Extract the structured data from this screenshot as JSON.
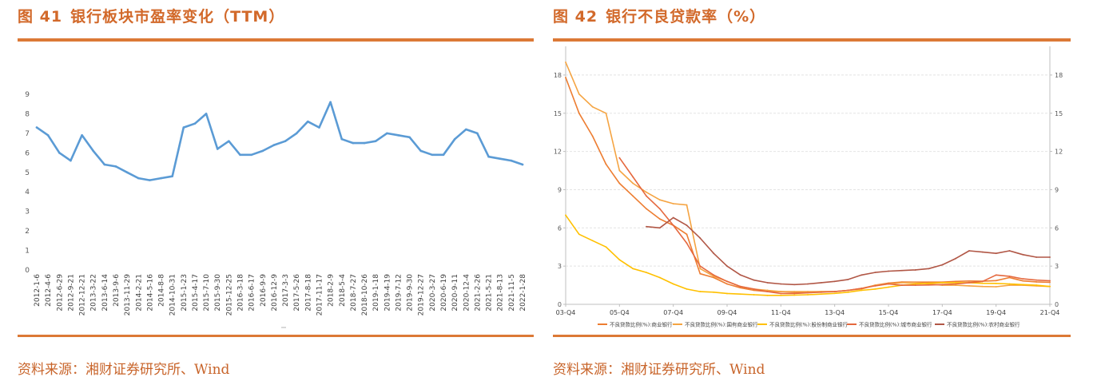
{
  "figures": [
    {
      "title_no": "图 41",
      "title_text": "银行板块市盈率变化（TTM）",
      "source": "资料来源：湘财证券研究所、Wind"
    },
    {
      "title_no": "图 42",
      "title_text": "银行不良贷款率（%）",
      "source": "资料来源：湘财证券研究所、Wind"
    }
  ],
  "chart_data": [
    {
      "type": "line",
      "title": "",
      "xlabel": "",
      "ylabel": "",
      "ylim": [
        0,
        9
      ],
      "yticks": [
        0,
        1,
        2,
        3,
        4,
        5,
        6,
        7,
        8,
        9
      ],
      "grid": false,
      "tick_labels": [
        "2012-1-6",
        "2012-4-6",
        "2012-6-29",
        "2012-9-21",
        "2012-12-21",
        "2013-3-22",
        "2013-6-14",
        "2013-9-6",
        "2013-11-29",
        "2014-2-21",
        "2014-5-16",
        "2014-8-8",
        "2014-10-31",
        "2015-1-23",
        "2015-4-17",
        "2015-7-10",
        "2015-9-30",
        "2015-12-25",
        "2016-3-18",
        "2016-6-17",
        "2016-9-9",
        "2016-12-9",
        "2017-3-3",
        "2017-5-26",
        "2017-8-18",
        "2017-11-17",
        "2018-2-9",
        "2018-5-4",
        "2018-7-27",
        "2018-10-26",
        "2019-1-18",
        "2019-4-19",
        "2019-7-12",
        "2019-9-30",
        "2019-12-27",
        "2020-3-27",
        "2020-6-19",
        "2020-9-11",
        "2020-12-4",
        "2021-2-26",
        "2021-5-21",
        "2021-8-13",
        "2021-11-5",
        "2022-1-28"
      ],
      "series": [
        {
          "color": "#5b9bd5",
          "x": [
            "2012-1-6",
            "2012-4-6",
            "2012-6-29",
            "2012-9-21",
            "2012-12-21",
            "2013-3-22",
            "2013-6-14",
            "2013-9-6",
            "2013-11-29",
            "2014-2-21",
            "2014-5-16",
            "2014-8-8",
            "2014-10-31",
            "2015-1-23",
            "2015-4-17",
            "2015-7-10",
            "2015-9-30",
            "2015-12-25",
            "2016-3-18",
            "2016-6-17",
            "2016-9-9",
            "2016-12-9",
            "2017-3-3",
            "2017-5-26",
            "2017-8-18",
            "2017-11-17",
            "2018-2-9",
            "2018-5-4",
            "2018-7-27",
            "2018-10-26",
            "2019-1-18",
            "2019-4-19",
            "2019-7-12",
            "2019-9-30",
            "2019-12-27",
            "2020-3-27",
            "2020-6-19",
            "2020-9-11",
            "2020-12-4",
            "2021-2-26",
            "2021-5-21",
            "2021-8-13",
            "2021-11-5",
            "2022-1-28"
          ],
          "values": [
            7.3,
            6.9,
            6.0,
            5.6,
            6.9,
            6.1,
            5.4,
            5.3,
            5.0,
            4.7,
            4.6,
            4.7,
            4.8,
            7.3,
            7.5,
            8.0,
            6.2,
            6.6,
            5.9,
            5.9,
            6.1,
            6.4,
            6.6,
            7.0,
            7.6,
            7.3,
            8.6,
            6.7,
            6.5,
            6.5,
            6.6,
            7.0,
            6.9,
            6.8,
            6.1,
            5.9,
            5.9,
            6.7,
            7.2,
            7.0,
            5.8,
            5.7,
            5.6,
            5.4
          ]
        }
      ]
    },
    {
      "type": "line",
      "title": "",
      "xlabel": "",
      "ylabel": "",
      "ylim": [
        0,
        19.5
      ],
      "yticks": [
        0,
        3,
        6,
        9,
        12,
        15,
        18
      ],
      "grid": true,
      "legend_position": "bottom",
      "x": [
        "03-Q4",
        "04-Q2",
        "04-Q4",
        "05-Q2",
        "05-Q4",
        "06-Q2",
        "06-Q4",
        "07-Q2",
        "07-Q4",
        "08-Q2",
        "08-Q4",
        "09-Q2",
        "09-Q4",
        "10-Q2",
        "10-Q4",
        "11-Q2",
        "11-Q4",
        "12-Q2",
        "12-Q4",
        "13-Q2",
        "13-Q4",
        "14-Q2",
        "14-Q4",
        "15-Q2",
        "15-Q4",
        "16-Q2",
        "16-Q4",
        "17-Q2",
        "17-Q4",
        "18-Q2",
        "18-Q4",
        "19-Q2",
        "19-Q4",
        "20-Q2",
        "20-Q4",
        "21-Q2",
        "21-Q4"
      ],
      "tick_labels": [
        "03-Q4",
        "05-Q4",
        "07-Q4",
        "09-Q4",
        "11-Q4",
        "13-Q4",
        "15-Q4",
        "17-Q4",
        "19-Q4",
        "21-Q4"
      ],
      "series": [
        {
          "name": "不良贷款比例(%):商业银行",
          "color": "#ed7d31",
          "values": [
            17.8,
            15.0,
            13.2,
            11.0,
            9.5,
            8.5,
            7.5,
            6.7,
            6.2,
            5.5,
            2.4,
            2.1,
            1.6,
            1.3,
            1.1,
            1.0,
            1.0,
            0.95,
            0.95,
            1.0,
            1.0,
            1.1,
            1.25,
            1.5,
            1.67,
            1.75,
            1.74,
            1.74,
            1.74,
            1.8,
            1.83,
            1.81,
            1.86,
            2.1,
            1.84,
            1.76,
            1.73
          ]
        },
        {
          "name": "不良贷款比例(%):国有商业银行",
          "color": "#f5a442",
          "values": [
            19.0,
            16.5,
            15.5,
            15.0,
            10.5,
            9.5,
            8.8,
            8.2,
            7.9,
            7.8,
            2.8,
            2.2,
            1.8,
            1.4,
            1.2,
            1.1,
            1.0,
            1.0,
            1.0,
            1.0,
            1.0,
            1.1,
            1.2,
            1.5,
            1.6,
            1.7,
            1.7,
            1.6,
            1.5,
            1.5,
            1.45,
            1.4,
            1.38,
            1.5,
            1.5,
            1.45,
            1.4
          ]
        },
        {
          "name": "不良贷款比例(%):股份制商业银行",
          "color": "#ffc000",
          "values": [
            7.0,
            5.5,
            5.0,
            4.5,
            3.5,
            2.8,
            2.5,
            2.1,
            1.6,
            1.2,
            1.0,
            0.95,
            0.85,
            0.8,
            0.75,
            0.7,
            0.7,
            0.72,
            0.75,
            0.8,
            0.86,
            0.95,
            1.1,
            1.2,
            1.35,
            1.5,
            1.6,
            1.65,
            1.7,
            1.7,
            1.7,
            1.65,
            1.64,
            1.6,
            1.55,
            1.5,
            1.4
          ]
        },
        {
          "name": "不良贷款比例(%):城市商业银行",
          "color": "#e5683e",
          "values": [
            null,
            null,
            null,
            null,
            11.5,
            10.0,
            8.5,
            7.5,
            6.2,
            4.8,
            3.0,
            2.3,
            1.8,
            1.4,
            1.2,
            1.0,
            0.85,
            0.85,
            0.9,
            0.95,
            1.0,
            1.1,
            1.25,
            1.45,
            1.6,
            1.5,
            1.5,
            1.52,
            1.55,
            1.6,
            1.7,
            1.8,
            2.3,
            2.2,
            2.0,
            1.9,
            1.85
          ]
        },
        {
          "name": "不良贷款比例(%):农村商业银行",
          "color": "#b15746",
          "values": [
            null,
            null,
            null,
            null,
            null,
            null,
            6.1,
            6.0,
            6.8,
            6.2,
            5.2,
            4.0,
            3.0,
            2.3,
            1.9,
            1.7,
            1.6,
            1.55,
            1.6,
            1.7,
            1.8,
            1.95,
            2.3,
            2.5,
            2.6,
            2.65,
            2.7,
            2.8,
            3.1,
            3.6,
            4.2,
            4.1,
            4.0,
            4.2,
            3.9,
            3.7,
            3.7
          ]
        }
      ]
    }
  ]
}
